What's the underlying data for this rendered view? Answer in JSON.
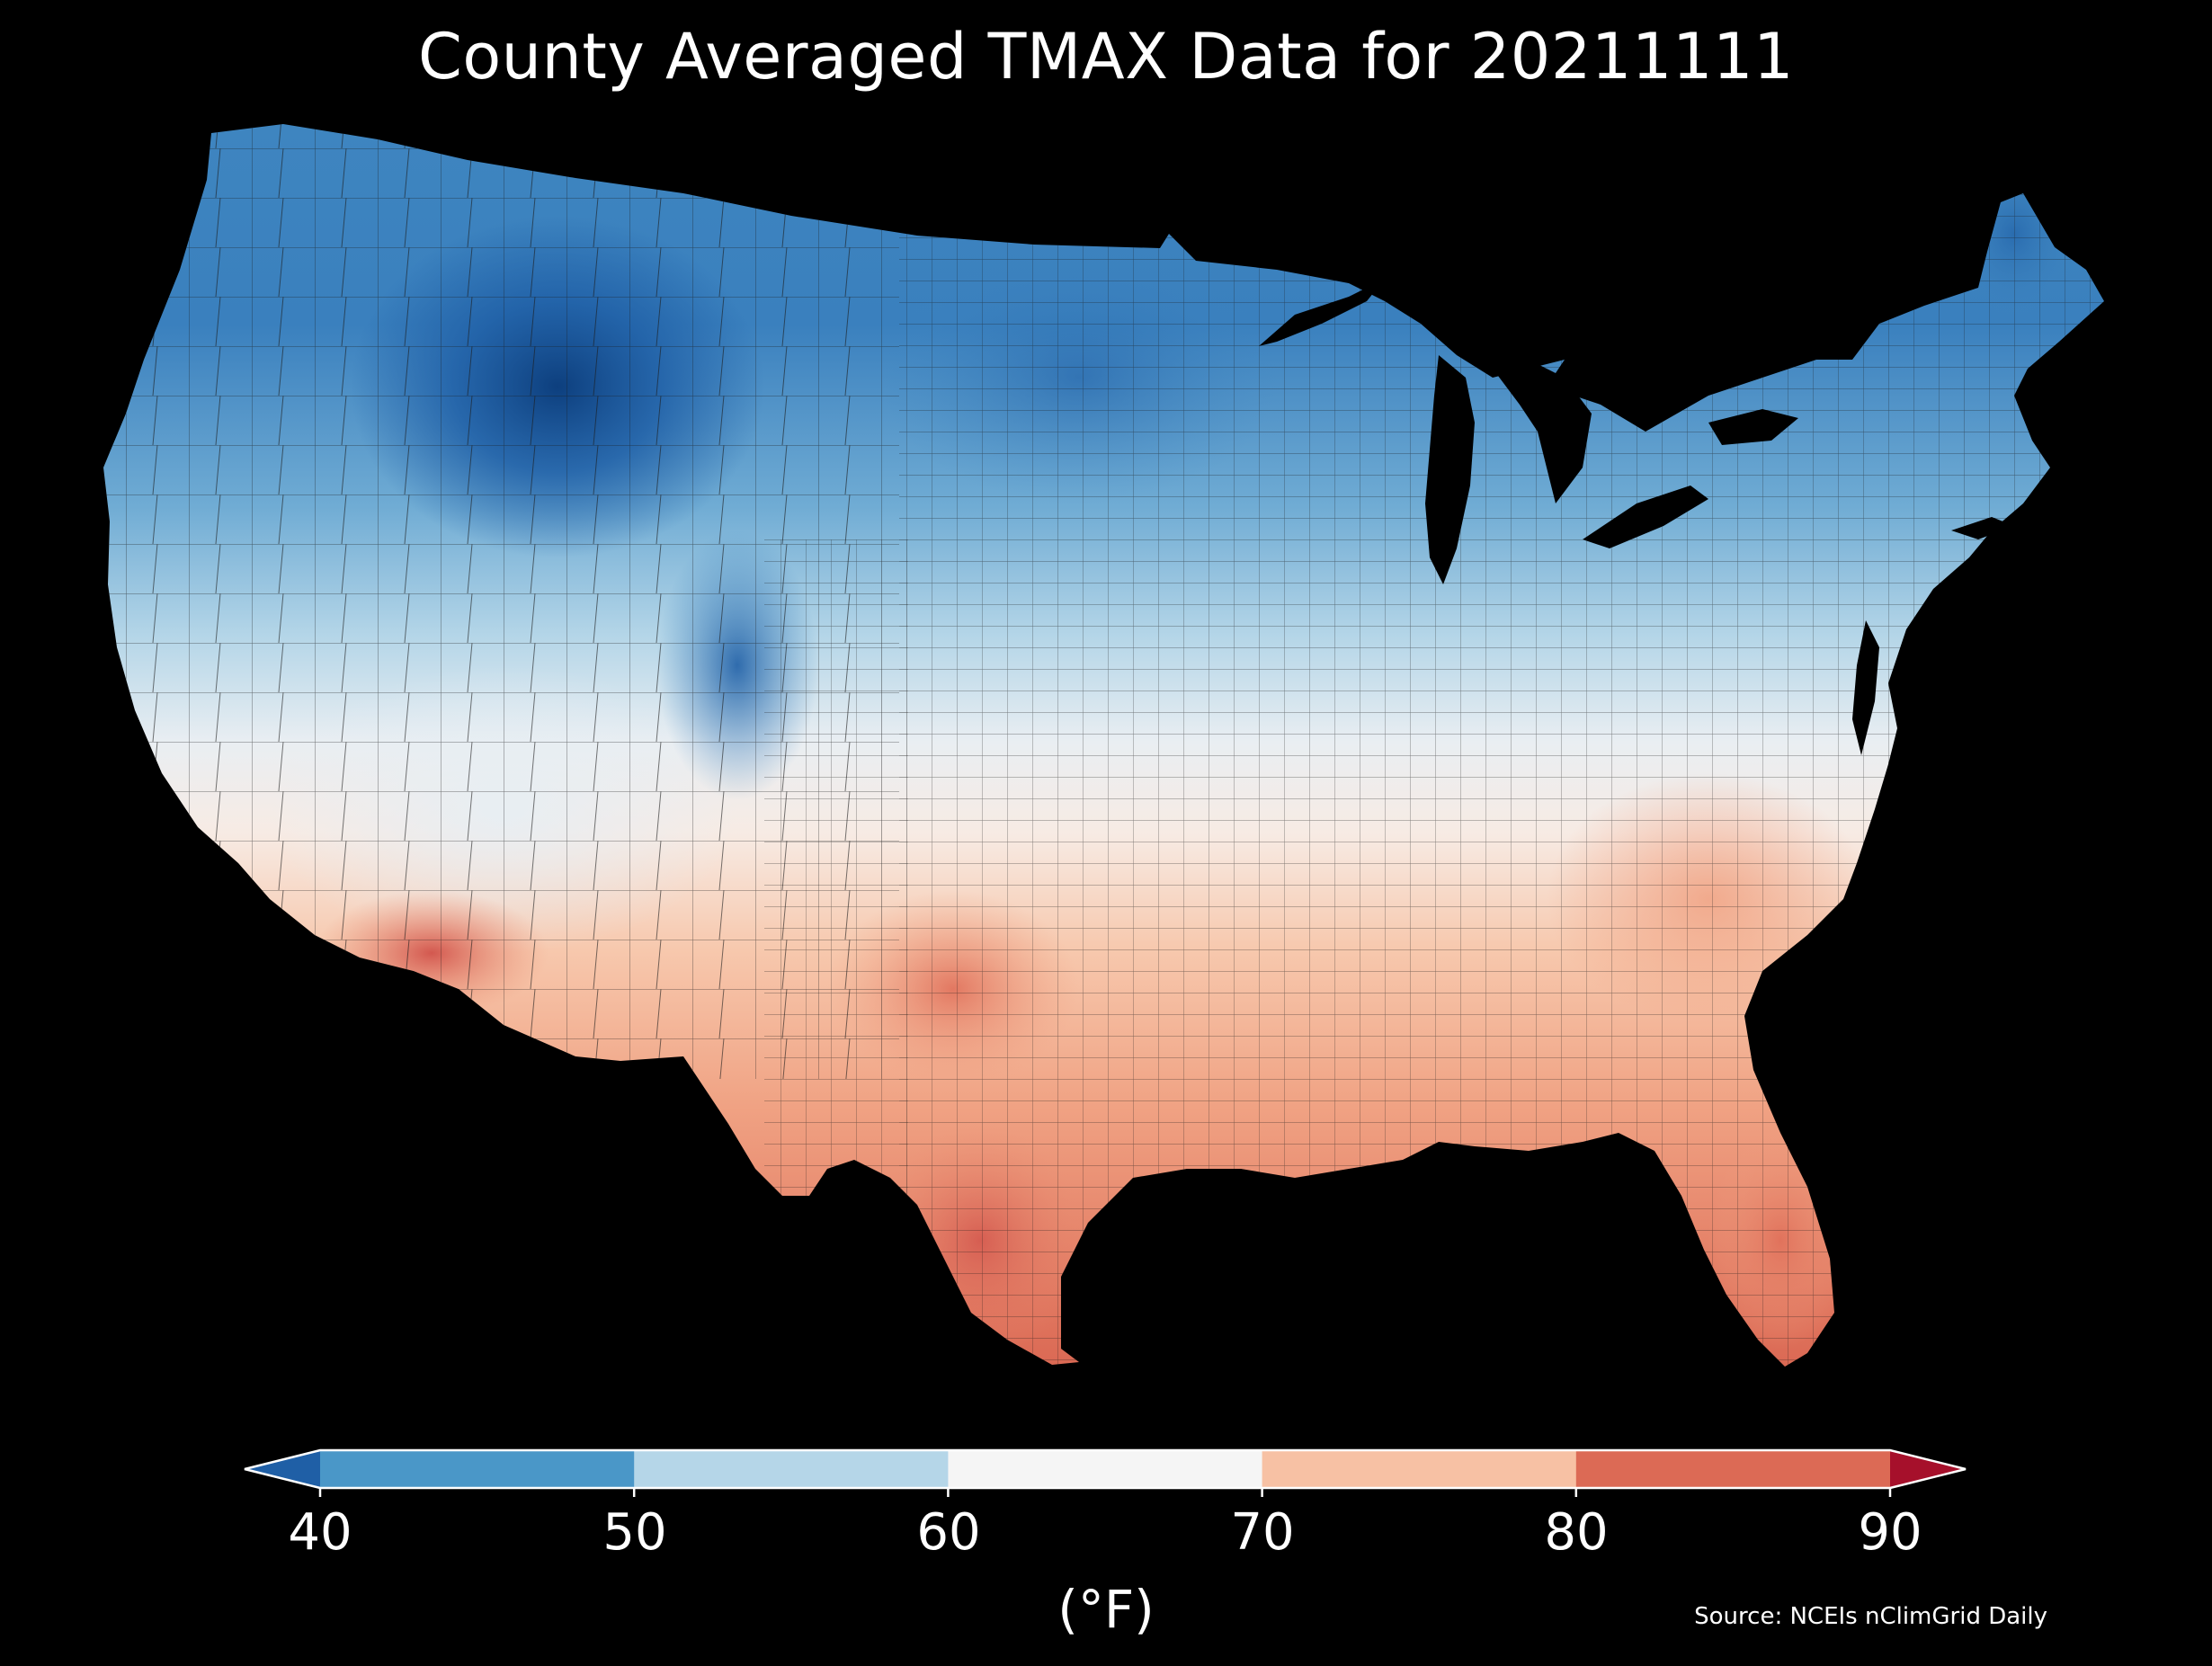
{
  "title": "County Averaged TMAX Data for 20211111",
  "source": "Source: NCEIs nClimGrid Daily",
  "colorbar": {
    "units": "(°F)",
    "ticks": [
      "40",
      "50",
      "60",
      "70",
      "80",
      "90"
    ],
    "bins": [
      {
        "from": null,
        "to": 40,
        "color": "#1f5fa6"
      },
      {
        "from": 40,
        "to": 50,
        "color": "#4a97c8"
      },
      {
        "from": 50,
        "to": 60,
        "color": "#b5d6e8"
      },
      {
        "from": 60,
        "to": 70,
        "color": "#f5f5f5"
      },
      {
        "from": 70,
        "to": 80,
        "color": "#f7c1a4"
      },
      {
        "from": 80,
        "to": 90,
        "color": "#dc6a55"
      },
      {
        "from": 90,
        "to": null,
        "color": "#a6102b"
      }
    ]
  },
  "map": {
    "type": "choropleth",
    "region": "Contiguous United States counties",
    "variable": "TMAX",
    "date": "20211111",
    "background": "#000000",
    "county_border": "#1a1a1a"
  }
}
